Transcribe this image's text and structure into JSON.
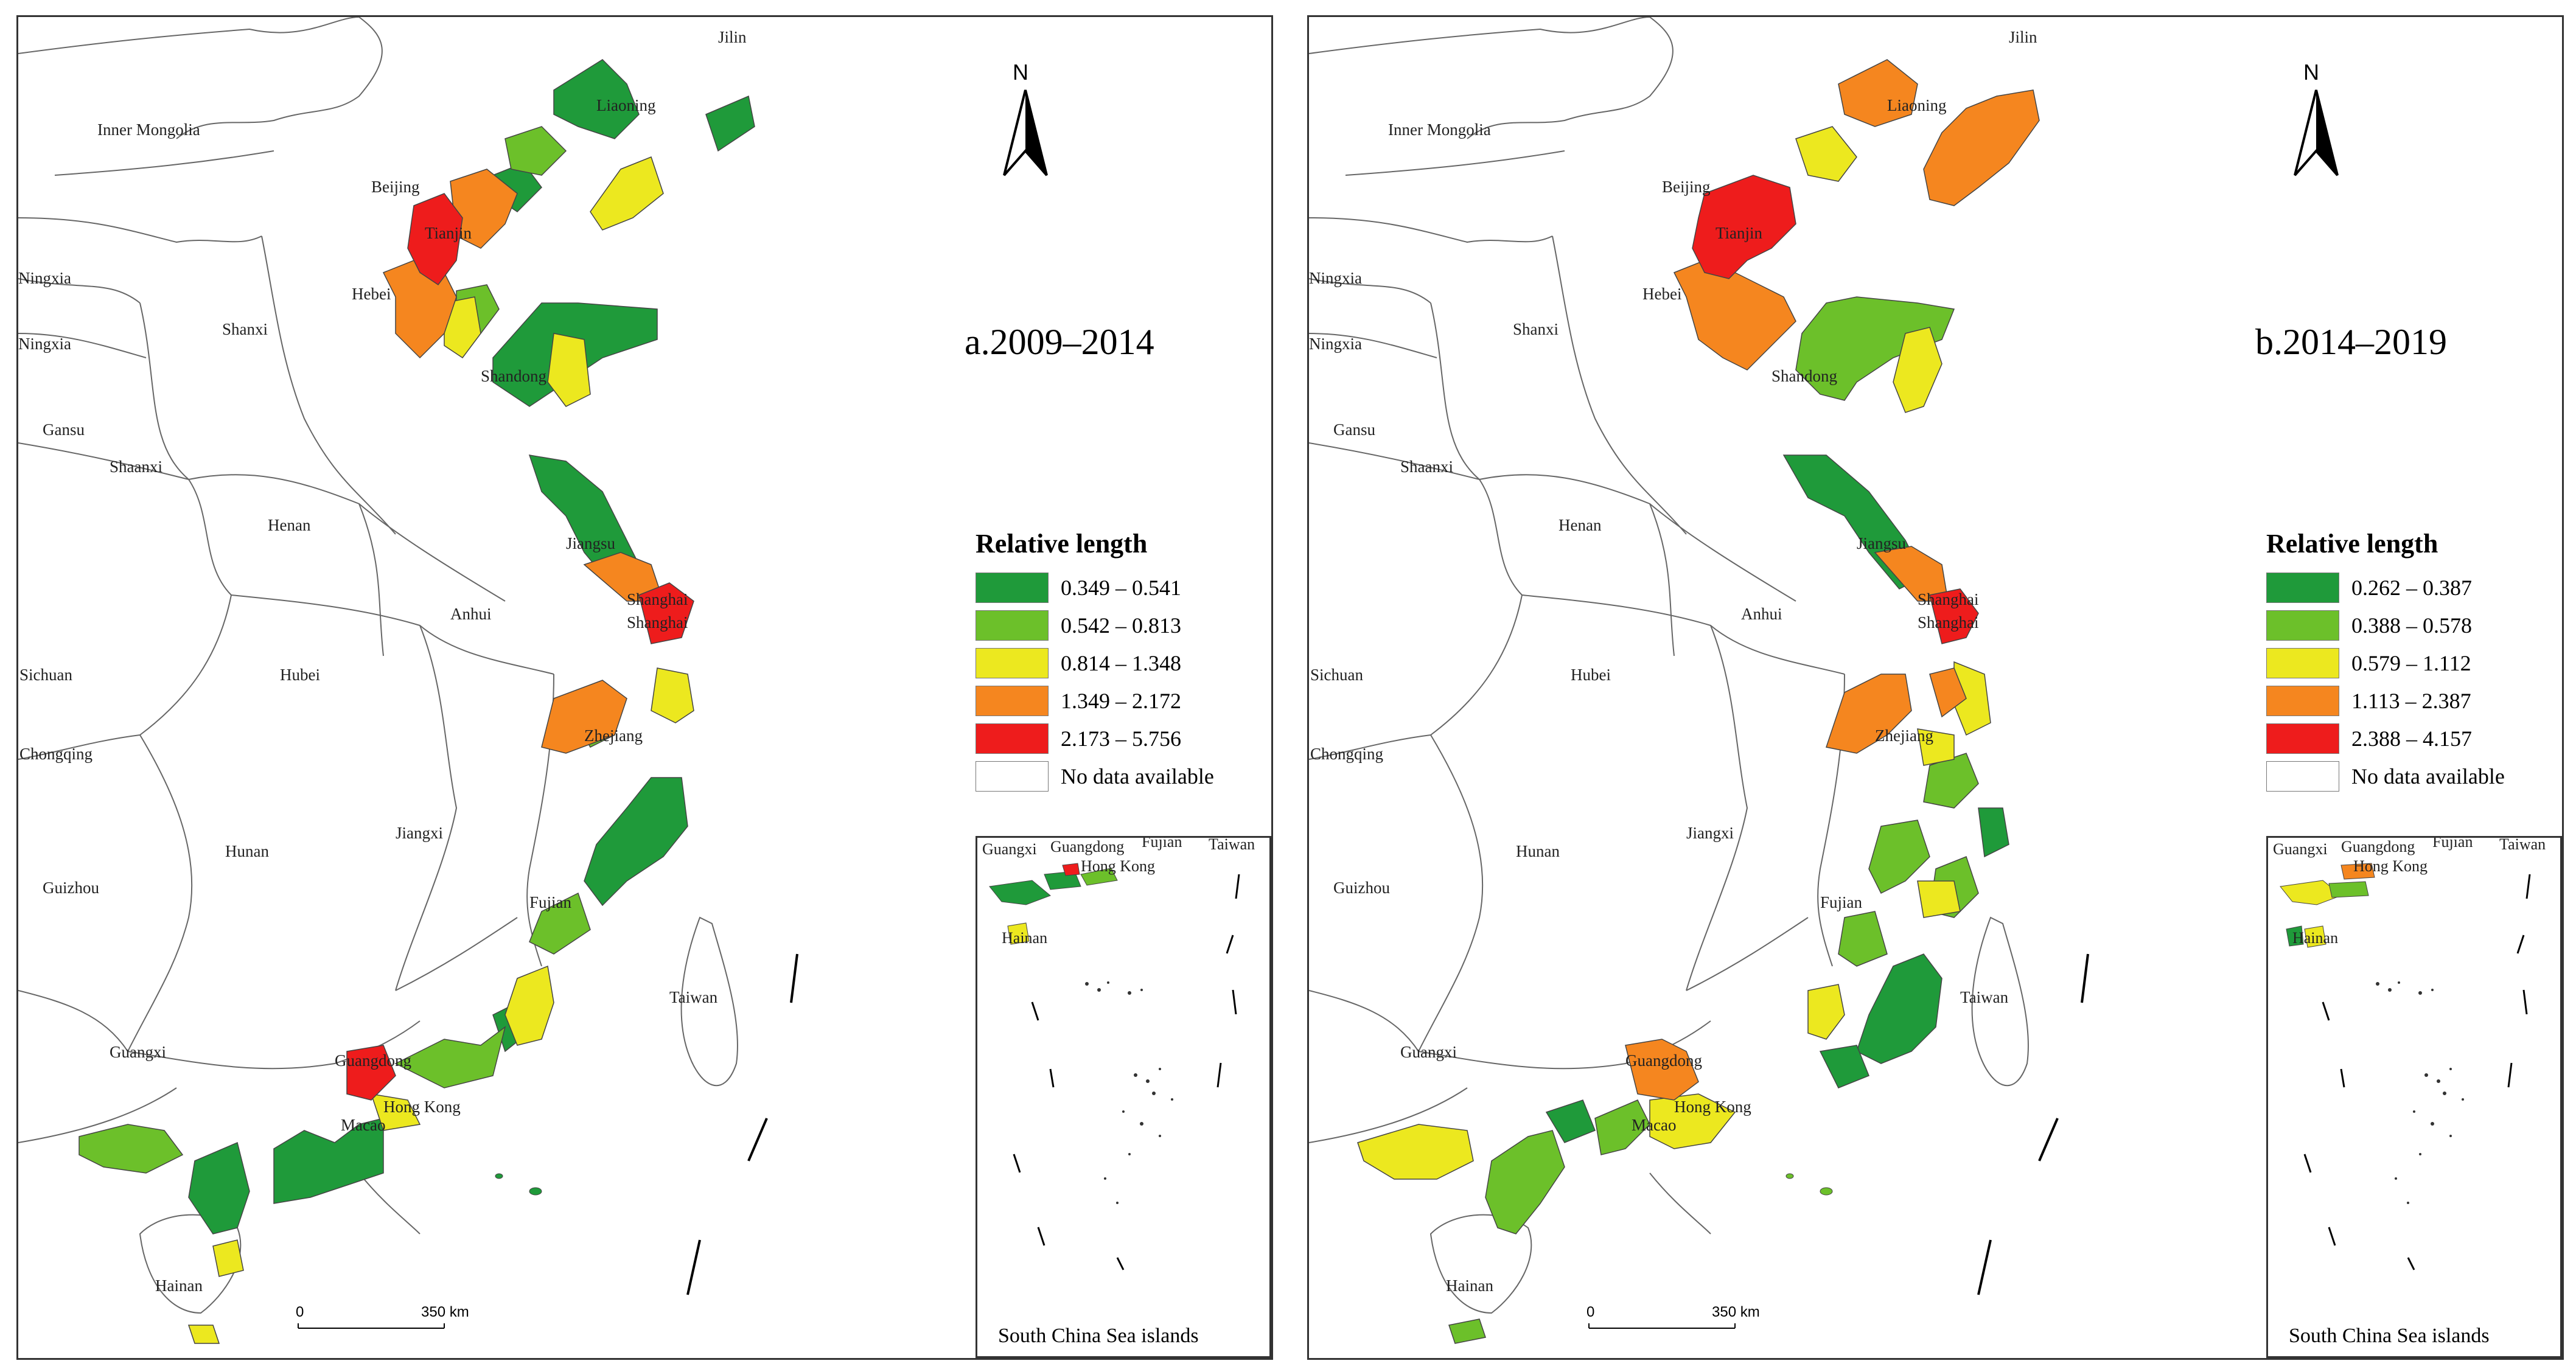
{
  "north_label": "N",
  "places": {
    "jilin": "Jilin",
    "inner_mongolia": "Inner Mongolia",
    "liaoning": "Liaoning",
    "beijing": "Beijing",
    "tianjin": "Tianjin",
    "hebei": "Hebei",
    "ningxia": "Ningxia",
    "shanxi": "Shanxi",
    "shandong": "Shandong",
    "gansu": "Gansu",
    "shaanxi": "Shaanxi",
    "henan": "Henan",
    "jiangsu": "Jiangsu",
    "anhui": "Anhui",
    "shanghai": "Shanghai",
    "sichuan": "Sichuan",
    "hubei": "Hubei",
    "zhejiang": "Zhejiang",
    "chongqing": "Chongqing",
    "hunan": "Hunan",
    "jiangxi": "Jiangxi",
    "guizhou": "Guizhou",
    "fujian": "Fujian",
    "taiwan": "Taiwan",
    "guangxi": "Guangxi",
    "guangdong": "Guangdong",
    "hong_kong": "Hong Kong",
    "macao": "Macao",
    "hainan": "Hainan"
  },
  "inset_title": "South China Sea islands",
  "scale": {
    "start": "0",
    "end": "350 km"
  },
  "chart_data": [
    {
      "type": "choropleth",
      "title": "a.2009–2014",
      "legend_title": "Relative length",
      "classes": [
        {
          "label": "0.349 – 0.541",
          "color": "#1f9a3a"
        },
        {
          "label": "0.542 – 0.813",
          "color": "#6cc02a"
        },
        {
          "label": "0.814 – 1.348",
          "color": "#ece81f"
        },
        {
          "label": "1.349 – 2.172",
          "color": "#f5861f"
        },
        {
          "label": "2.173 – 5.756",
          "color": "#ee1c1c"
        }
      ],
      "no_data_label": "No data available",
      "no_data_color": "#ffffff"
    },
    {
      "type": "choropleth",
      "title": "b.2014–2019",
      "legend_title": "Relative length",
      "classes": [
        {
          "label": "0.262 – 0.387",
          "color": "#1f9a3a"
        },
        {
          "label": "0.388 – 0.578",
          "color": "#6cc02a"
        },
        {
          "label": "0.579 – 1.112",
          "color": "#ece81f"
        },
        {
          "label": "1.113 – 2.387",
          "color": "#f5861f"
        },
        {
          "label": "2.388 – 4.157",
          "color": "#ee1c1c"
        }
      ],
      "no_data_label": "No data available",
      "no_data_color": "#ffffff"
    }
  ]
}
